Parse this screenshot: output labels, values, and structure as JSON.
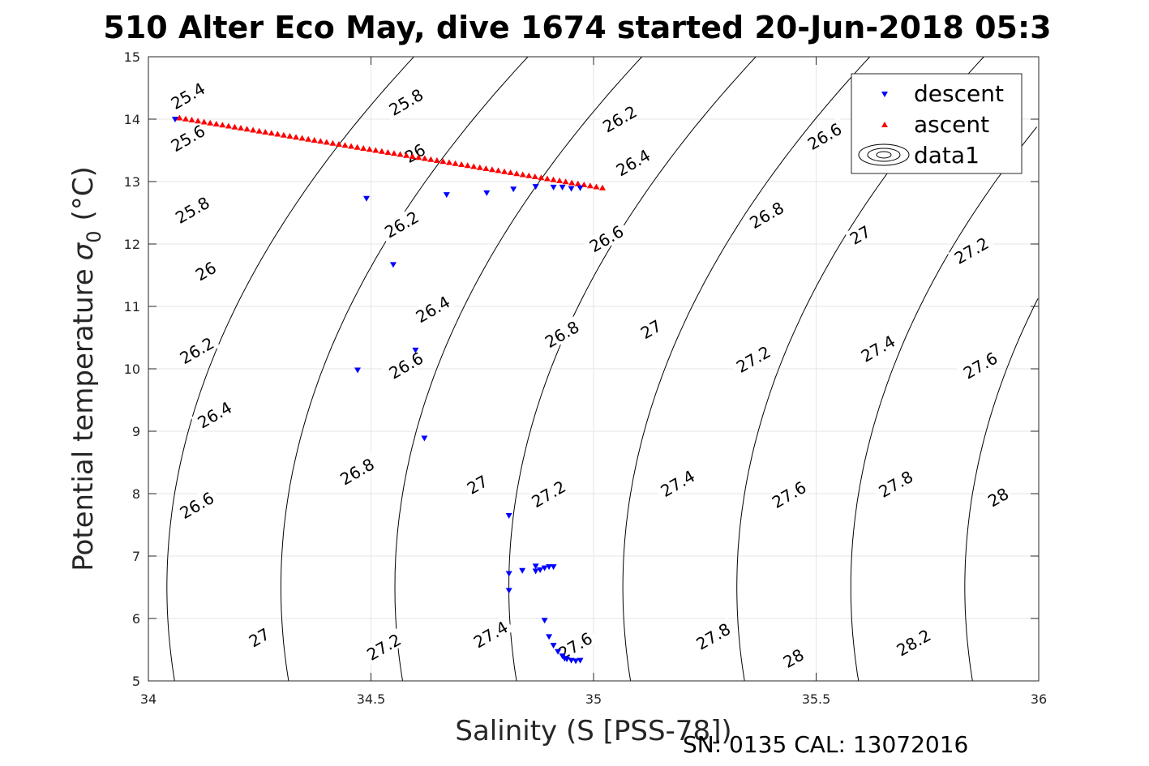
{
  "chart_data": {
    "type": "scatter",
    "title": "510 Alter Eco May, dive 1674 started 20-Jun-2018 05:3",
    "xlabel": "Salinity (S [PSS-78])",
    "ylabel_text": "Potential temperature",
    "ylabel_symbol": "σ",
    "ylabel_sub": "0",
    "ylabel_unit": "(°C)",
    "xlim": [
      34,
      36
    ],
    "ylim": [
      5,
      15
    ],
    "x_ticks": [
      34,
      34.5,
      35,
      35.5,
      36
    ],
    "x_tick_labels": [
      "34",
      "34.5",
      "35",
      "35.5",
      "36"
    ],
    "y_ticks": [
      5,
      6,
      7,
      8,
      9,
      10,
      11,
      12,
      13,
      14,
      15
    ],
    "y_tick_labels": [
      "5",
      "6",
      "7",
      "8",
      "9",
      "10",
      "11",
      "12",
      "13",
      "14",
      "15"
    ],
    "grid": true,
    "legend_position": "top-right",
    "footer": "SN: 0135  CAL: 13072016",
    "series": [
      {
        "name": "descent",
        "marker": "triangle-down",
        "color": "#0000ff",
        "points": [
          [
            34.06,
            14.0
          ],
          [
            34.49,
            12.73
          ],
          [
            34.55,
            11.67
          ],
          [
            34.6,
            10.3
          ],
          [
            34.47,
            9.98
          ],
          [
            34.62,
            8.89
          ],
          [
            34.67,
            12.79
          ],
          [
            34.76,
            12.82
          ],
          [
            34.82,
            12.88
          ],
          [
            34.87,
            12.92
          ],
          [
            34.91,
            12.91
          ],
          [
            34.93,
            12.91
          ],
          [
            34.95,
            12.89
          ],
          [
            34.97,
            12.9
          ],
          [
            34.81,
            7.65
          ],
          [
            34.81,
            6.72
          ],
          [
            34.81,
            6.45
          ],
          [
            34.84,
            6.77
          ],
          [
            34.87,
            6.84
          ],
          [
            34.87,
            6.76
          ],
          [
            34.88,
            6.78
          ],
          [
            34.89,
            6.81
          ],
          [
            34.9,
            6.83
          ],
          [
            34.91,
            6.83
          ],
          [
            34.89,
            5.97
          ],
          [
            34.9,
            5.71
          ],
          [
            34.91,
            5.57
          ],
          [
            34.92,
            5.47
          ],
          [
            34.93,
            5.4
          ],
          [
            34.94,
            5.35
          ],
          [
            34.95,
            5.33
          ],
          [
            34.96,
            5.32
          ],
          [
            34.97,
            5.33
          ],
          [
            34.935,
            5.36
          ]
        ]
      },
      {
        "name": "ascent",
        "marker": "triangle-up",
        "color": "#ff0000",
        "line_from": [
          34.07,
          14.02
        ],
        "line_to": [
          35.02,
          12.9
        ],
        "count": 70
      },
      {
        "name": "data1",
        "marker": "contour",
        "color": "#000000",
        "contour_levels": [
          25.4,
          25.6,
          25.8,
          26.0,
          26.2,
          26.4,
          26.6,
          26.8,
          27.0,
          27.2,
          27.4,
          27.6,
          27.8,
          28.0,
          28.2
        ]
      }
    ],
    "contour_labels": [
      {
        "text": "25.4",
        "x": 34.09,
        "y": 14.36
      },
      {
        "text": "25.8",
        "x": 34.58,
        "y": 14.26
      },
      {
        "text": "26.2",
        "x": 35.06,
        "y": 13.99
      },
      {
        "text": "26.6",
        "x": 35.52,
        "y": 13.71
      },
      {
        "text": "25.6",
        "x": 34.09,
        "y": 13.68
      },
      {
        "text": "26",
        "x": 34.6,
        "y": 13.44
      },
      {
        "text": "26.4",
        "x": 35.09,
        "y": 13.29
      },
      {
        "text": "25.8",
        "x": 34.1,
        "y": 12.53
      },
      {
        "text": "26.2",
        "x": 34.57,
        "y": 12.3
      },
      {
        "text": "26.6",
        "x": 35.03,
        "y": 12.07
      },
      {
        "text": "26.8",
        "x": 35.39,
        "y": 12.45
      },
      {
        "text": "27",
        "x": 35.6,
        "y": 12.13
      },
      {
        "text": "27.2",
        "x": 35.85,
        "y": 11.88
      },
      {
        "text": "26",
        "x": 34.13,
        "y": 11.55
      },
      {
        "text": "26.4",
        "x": 34.64,
        "y": 10.94
      },
      {
        "text": "26.2",
        "x": 34.11,
        "y": 10.28
      },
      {
        "text": "26.8",
        "x": 34.93,
        "y": 10.54
      },
      {
        "text": "27",
        "x": 35.13,
        "y": 10.62
      },
      {
        "text": "27.2",
        "x": 35.36,
        "y": 10.14
      },
      {
        "text": "27.4",
        "x": 35.64,
        "y": 10.31
      },
      {
        "text": "27.6",
        "x": 35.87,
        "y": 10.04
      },
      {
        "text": "26.6",
        "x": 34.58,
        "y": 10.04
      },
      {
        "text": "26.4",
        "x": 34.15,
        "y": 9.25
      },
      {
        "text": "26.8",
        "x": 34.47,
        "y": 8.34
      },
      {
        "text": "27",
        "x": 34.74,
        "y": 8.13
      },
      {
        "text": "27.2",
        "x": 34.9,
        "y": 7.98
      },
      {
        "text": "27.4",
        "x": 35.19,
        "y": 8.15
      },
      {
        "text": "27.6",
        "x": 35.44,
        "y": 7.97
      },
      {
        "text": "27.8",
        "x": 35.68,
        "y": 8.14
      },
      {
        "text": "28",
        "x": 35.91,
        "y": 7.93
      },
      {
        "text": "26.6",
        "x": 34.11,
        "y": 7.8
      },
      {
        "text": "27",
        "x": 34.25,
        "y": 5.68
      },
      {
        "text": "27.2",
        "x": 34.53,
        "y": 5.53
      },
      {
        "text": "27.4",
        "x": 34.77,
        "y": 5.73
      },
      {
        "text": "27.6",
        "x": 34.96,
        "y": 5.55
      },
      {
        "text": "27.8",
        "x": 35.27,
        "y": 5.7
      },
      {
        "text": "28",
        "x": 35.45,
        "y": 5.35
      },
      {
        "text": "28.2",
        "x": 35.72,
        "y": 5.6
      }
    ]
  }
}
